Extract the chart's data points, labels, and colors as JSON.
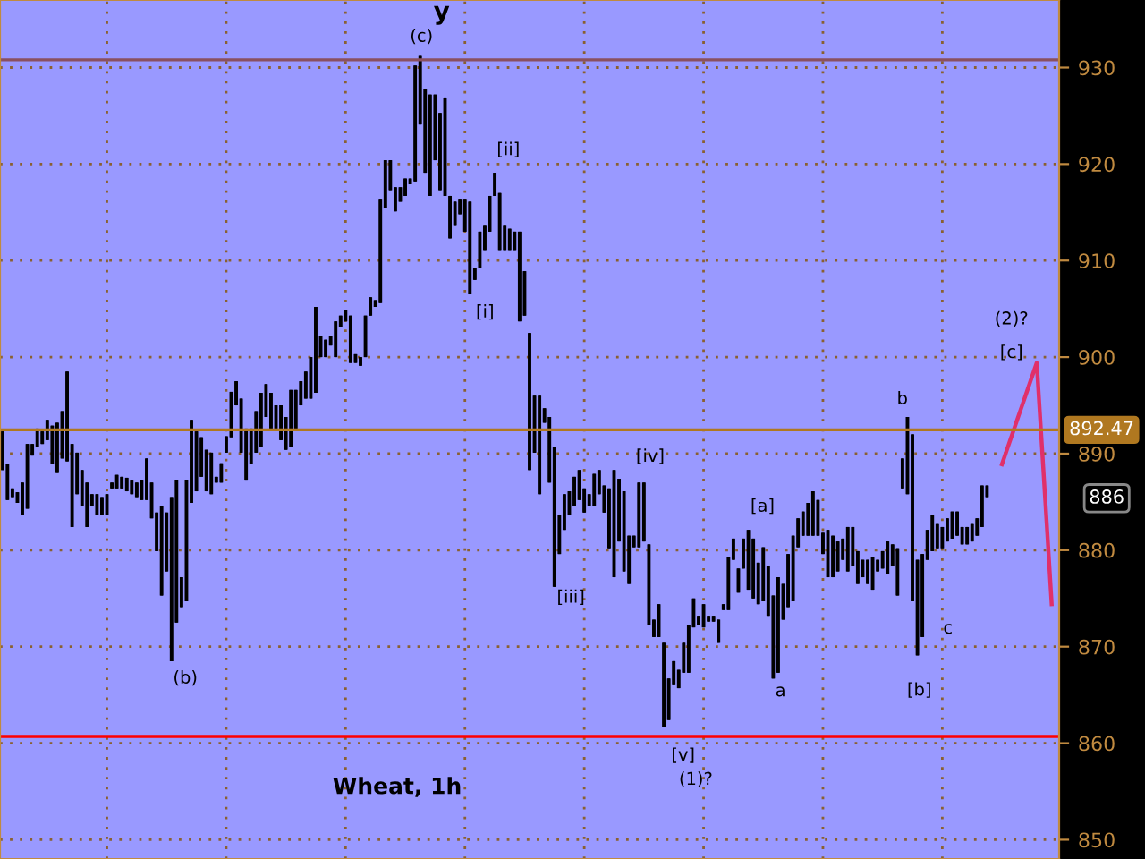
{
  "chart_data": {
    "type": "candlestick",
    "title": "Wheat, 1h",
    "categories": [
      null,
      null,
      null,
      null,
      null,
      null,
      null,
      null,
      null,
      null,
      null,
      null,
      null,
      null,
      null,
      null,
      null,
      null,
      null,
      null,
      null,
      null,
      null,
      null,
      null,
      null,
      null,
      null,
      null,
      null,
      null,
      null,
      null,
      null,
      null,
      null,
      null,
      null,
      null,
      null,
      null,
      null,
      null,
      null,
      null,
      null,
      null,
      null,
      null,
      null,
      null,
      null,
      null,
      null,
      null,
      null,
      null,
      null,
      null,
      null,
      null,
      null,
      null,
      null,
      null,
      null,
      null,
      null,
      null,
      null,
      null,
      null,
      null,
      null,
      null,
      null,
      null,
      null,
      null,
      null,
      null,
      null,
      null,
      null,
      null,
      null,
      null,
      null,
      null,
      null,
      null,
      null,
      null,
      null,
      null,
      null,
      null,
      null,
      null,
      null,
      null,
      null,
      null,
      null,
      null,
      null,
      null,
      null,
      null,
      null,
      null,
      null,
      null,
      null,
      null,
      null,
      null,
      null,
      null,
      null,
      null,
      null,
      null,
      null,
      null,
      null,
      null,
      null,
      null,
      null,
      null,
      null,
      null,
      null,
      null,
      null,
      null,
      null,
      null,
      null,
      null,
      null,
      null,
      null,
      null,
      null,
      null,
      null,
      null,
      null,
      null,
      null,
      null,
      null,
      null,
      null,
      null,
      null,
      null,
      null,
      null,
      null,
      null,
      null,
      null,
      null,
      null,
      null,
      null,
      null,
      null,
      null,
      null,
      null,
      null,
      null,
      null,
      null,
      null,
      null,
      null,
      null,
      null,
      null,
      null,
      null,
      null,
      null,
      null,
      null,
      null,
      null,
      null,
      null,
      null,
      null,
      null,
      null,
      null,
      null,
      null,
      null,
      null,
      null,
      null,
      null,
      null,
      null,
      null,
      null,
      null,
      null,
      null
    ],
    "ohlc": [
      [
        888.3,
        892.3,
        888.3,
        892.3
      ],
      [
        885.2,
        888.9,
        885.2,
        888.9
      ],
      [
        885.5,
        886.4,
        885.5,
        886.4
      ],
      [
        884.9,
        886.0,
        884.9,
        886.0
      ],
      [
        883.6,
        887.0,
        883.6,
        887.0
      ],
      [
        884.3,
        891.0,
        884.3,
        891.0
      ],
      [
        889.8,
        891.0,
        889.8,
        891.0
      ],
      [
        890.7,
        892.6,
        890.7,
        892.6
      ],
      [
        891.0,
        892.3,
        891.0,
        892.3
      ],
      [
        891.4,
        893.5,
        891.4,
        893.5
      ],
      [
        888.9,
        892.9,
        888.9,
        892.9
      ],
      [
        888.0,
        893.2,
        888.0,
        893.2
      ],
      [
        889.5,
        894.4,
        889.5,
        894.4
      ],
      [
        889.2,
        898.5,
        889.2,
        898.5
      ],
      [
        882.4,
        891.0,
        882.4,
        891.0
      ],
      [
        885.8,
        890.1,
        885.8,
        890.1
      ],
      [
        884.6,
        888.3,
        884.6,
        888.3
      ],
      [
        882.4,
        887.0,
        882.4,
        887.0
      ],
      [
        884.6,
        885.8,
        884.6,
        885.8
      ],
      [
        883.6,
        885.8,
        883.6,
        885.8
      ],
      [
        883.6,
        885.5,
        883.6,
        885.5
      ],
      [
        883.6,
        885.8,
        883.6,
        885.8
      ],
      [
        886.4,
        887.0,
        886.4,
        887.0
      ],
      [
        886.4,
        887.8,
        886.4,
        887.8
      ],
      [
        886.4,
        887.6,
        886.4,
        887.6
      ],
      [
        886.1,
        887.5,
        886.1,
        887.5
      ],
      [
        885.8,
        887.3,
        885.8,
        887.3
      ],
      [
        885.5,
        887.0,
        885.5,
        887.0
      ],
      [
        885.2,
        887.3,
        885.2,
        887.3
      ],
      [
        885.2,
        889.5,
        885.2,
        889.5
      ],
      [
        883.3,
        887.0,
        883.3,
        887.0
      ],
      [
        879.9,
        883.9,
        879.9,
        883.9
      ],
      [
        875.3,
        884.6,
        875.3,
        884.6
      ],
      [
        877.8,
        883.9,
        877.8,
        883.9
      ],
      [
        868.5,
        885.5,
        868.5,
        885.5
      ],
      [
        872.5,
        887.3,
        872.5,
        887.3
      ],
      [
        874.1,
        877.2,
        874.1,
        877.2
      ],
      [
        874.7,
        887.3,
        874.7,
        887.3
      ],
      [
        884.9,
        893.5,
        884.9,
        893.5
      ],
      [
        886.1,
        892.3,
        886.1,
        892.3
      ],
      [
        887.6,
        891.7,
        887.6,
        891.7
      ],
      [
        886.1,
        890.4,
        886.1,
        890.4
      ],
      [
        885.8,
        890.1,
        885.8,
        890.1
      ],
      [
        887.0,
        887.6,
        887.0,
        887.6
      ],
      [
        887.0,
        889.0,
        887.0,
        889.0
      ],
      [
        890.1,
        891.8,
        890.1,
        891.8
      ],
      [
        891.7,
        896.4,
        891.7,
        896.4
      ],
      [
        895.0,
        897.5,
        895.0,
        897.5
      ],
      [
        890.1,
        895.7,
        890.1,
        895.7
      ],
      [
        887.3,
        892.6,
        887.3,
        892.6
      ],
      [
        888.9,
        892.6,
        888.9,
        892.6
      ],
      [
        890.1,
        894.4,
        890.1,
        894.4
      ],
      [
        890.7,
        896.3,
        890.7,
        896.3
      ],
      [
        893.8,
        897.2,
        893.8,
        897.2
      ],
      [
        892.6,
        896.3,
        892.6,
        896.3
      ],
      [
        892.6,
        895.0,
        892.6,
        895.0
      ],
      [
        891.4,
        895.0,
        891.4,
        895.0
      ],
      [
        890.4,
        893.8,
        890.4,
        893.8
      ],
      [
        890.7,
        896.6,
        890.7,
        896.6
      ],
      [
        892.6,
        896.6,
        892.6,
        896.6
      ],
      [
        895.0,
        897.5,
        895.0,
        897.5
      ],
      [
        895.7,
        898.5,
        895.7,
        898.5
      ],
      [
        895.7,
        900.0,
        895.7,
        900.0
      ],
      [
        896.3,
        905.2,
        896.3,
        905.2
      ],
      [
        900.0,
        902.2,
        900.0,
        902.2
      ],
      [
        900.0,
        901.8,
        900.0,
        901.8
      ],
      [
        901.2,
        902.2,
        901.2,
        902.2
      ],
      [
        900.0,
        903.7,
        900.0,
        903.7
      ],
      [
        903.1,
        904.3,
        903.1,
        904.3
      ],
      [
        903.7,
        904.9,
        903.7,
        904.9
      ],
      [
        899.4,
        904.3,
        899.4,
        904.3
      ],
      [
        899.4,
        900.3,
        899.4,
        900.3
      ],
      [
        899.1,
        900.0,
        899.1,
        900.0
      ],
      [
        900.0,
        904.3,
        900.0,
        904.3
      ],
      [
        904.3,
        906.2,
        904.3,
        906.2
      ],
      [
        905.2,
        905.9,
        905.2,
        905.9
      ],
      [
        905.6,
        916.4,
        905.6,
        916.4
      ],
      [
        915.4,
        920.4,
        915.4,
        920.4
      ],
      [
        917.3,
        920.4,
        917.3,
        920.4
      ],
      [
        915.1,
        917.6,
        915.1,
        917.6
      ],
      [
        916.1,
        917.6,
        916.1,
        917.6
      ],
      [
        916.7,
        918.5,
        916.7,
        918.5
      ],
      [
        917.9,
        918.5,
        917.9,
        918.5
      ],
      [
        918.2,
        930.2,
        918.2,
        930.2
      ],
      [
        924.1,
        931.2,
        924.1,
        931.2
      ],
      [
        919.1,
        927.8,
        919.1,
        927.8
      ],
      [
        916.7,
        927.2,
        916.7,
        927.2
      ],
      [
        920.4,
        927.2,
        920.4,
        927.2
      ],
      [
        917.3,
        925.3,
        917.3,
        925.3
      ],
      [
        916.7,
        926.9,
        916.7,
        926.9
      ],
      [
        912.3,
        916.7,
        912.3,
        916.7
      ],
      [
        913.6,
        916.1,
        913.6,
        916.1
      ],
      [
        914.8,
        916.4,
        914.8,
        916.4
      ],
      [
        913.0,
        916.4,
        913.0,
        916.4
      ],
      [
        906.5,
        916.1,
        906.5,
        916.1
      ],
      [
        908.0,
        909.2,
        908.0,
        909.2
      ],
      [
        909.2,
        913.0,
        909.2,
        913.0
      ],
      [
        911.1,
        913.6,
        911.1,
        913.6
      ],
      [
        913.0,
        916.7,
        913.0,
        916.7
      ],
      [
        916.7,
        919.1,
        916.7,
        919.1
      ],
      [
        911.1,
        917.0,
        911.1,
        917.0
      ],
      [
        911.1,
        913.6,
        911.1,
        913.6
      ],
      [
        911.1,
        913.3,
        911.1,
        913.3
      ],
      [
        911.1,
        913.0,
        911.1,
        913.0
      ],
      [
        903.7,
        913.0,
        903.7,
        913.0
      ],
      [
        904.3,
        908.9,
        904.3,
        908.9
      ],
      [
        888.3,
        902.5,
        888.3,
        902.5
      ],
      [
        890.1,
        896.0,
        890.1,
        896.0
      ],
      [
        885.8,
        896.0,
        885.8,
        896.0
      ],
      [
        893.2,
        894.7,
        893.2,
        894.7
      ],
      [
        887.0,
        893.8,
        887.0,
        893.8
      ],
      [
        876.2,
        890.7,
        876.2,
        890.7
      ],
      [
        879.6,
        883.6,
        879.6,
        883.6
      ],
      [
        882.1,
        885.8,
        882.1,
        885.8
      ],
      [
        883.6,
        886.1,
        883.6,
        886.1
      ],
      [
        884.6,
        887.6,
        884.6,
        887.6
      ],
      [
        885.2,
        888.3,
        885.2,
        888.3
      ],
      [
        883.9,
        886.4,
        883.9,
        886.4
      ],
      [
        884.6,
        885.8,
        884.6,
        885.8
      ],
      [
        884.6,
        887.9,
        884.6,
        887.9
      ],
      [
        885.8,
        888.3,
        885.8,
        888.3
      ],
      [
        883.9,
        886.7,
        883.9,
        886.7
      ],
      [
        880.2,
        886.4,
        880.2,
        886.4
      ],
      [
        877.2,
        888.3,
        877.2,
        888.3
      ],
      [
        880.9,
        887.4,
        880.9,
        887.4
      ],
      [
        877.8,
        886.1,
        877.8,
        886.1
      ],
      [
        876.5,
        881.5,
        876.5,
        881.5
      ],
      [
        880.3,
        881.5,
        880.3,
        881.5
      ],
      [
        880.3,
        887.0,
        880.3,
        887.0
      ],
      [
        880.9,
        887.0,
        880.9,
        887.0
      ],
      [
        872.2,
        880.6,
        872.2,
        880.6
      ],
      [
        871.0,
        872.8,
        871.0,
        872.8
      ],
      [
        871.0,
        874.4,
        871.0,
        874.4
      ],
      [
        861.7,
        870.4,
        861.7,
        870.4
      ],
      [
        862.4,
        866.7,
        862.4,
        866.7
      ],
      [
        866.1,
        868.5,
        866.1,
        868.5
      ],
      [
        865.7,
        867.6,
        865.7,
        867.6
      ],
      [
        867.3,
        870.4,
        867.3,
        870.4
      ],
      [
        867.3,
        872.2,
        867.3,
        872.2
      ],
      [
        872.0,
        875.0,
        872.0,
        875.0
      ],
      [
        872.2,
        873.2,
        872.2,
        873.2
      ],
      [
        872.0,
        874.4,
        872.0,
        874.4
      ],
      [
        872.6,
        873.2,
        872.6,
        873.2
      ],
      [
        872.6,
        873.2,
        872.6,
        873.2
      ],
      [
        870.4,
        872.8,
        870.4,
        872.8
      ],
      [
        873.8,
        874.4,
        873.8,
        874.4
      ],
      [
        873.8,
        879.3,
        873.8,
        879.3
      ],
      [
        879.0,
        881.2,
        879.0,
        881.2
      ],
      [
        875.6,
        878.1,
        875.6,
        878.1
      ],
      [
        878.1,
        881.2,
        878.1,
        881.2
      ],
      [
        875.9,
        882.1,
        875.9,
        882.1
      ],
      [
        875.0,
        881.2,
        875.0,
        881.2
      ],
      [
        874.4,
        878.7,
        874.4,
        878.7
      ],
      [
        874.7,
        880.3,
        874.7,
        880.3
      ],
      [
        873.2,
        878.4,
        873.2,
        878.4
      ],
      [
        866.7,
        875.3,
        866.7,
        875.3
      ],
      [
        867.3,
        877.2,
        867.3,
        877.2
      ],
      [
        872.8,
        876.5,
        872.8,
        876.5
      ],
      [
        874.1,
        879.6,
        874.1,
        879.6
      ],
      [
        874.7,
        881.5,
        874.7,
        881.5
      ],
      [
        880.3,
        883.3,
        880.3,
        883.3
      ],
      [
        881.5,
        884.0,
        881.5,
        884.0
      ],
      [
        881.5,
        884.9,
        881.5,
        884.9
      ],
      [
        881.5,
        886.1,
        881.5,
        886.1
      ],
      [
        881.5,
        885.2,
        881.5,
        885.2
      ],
      [
        879.6,
        881.8,
        879.6,
        881.8
      ],
      [
        877.2,
        882.1,
        877.2,
        882.1
      ],
      [
        877.2,
        881.5,
        877.2,
        881.5
      ],
      [
        877.8,
        880.9,
        877.8,
        880.9
      ],
      [
        879.0,
        881.2,
        879.0,
        881.2
      ],
      [
        877.8,
        882.4,
        877.8,
        882.4
      ],
      [
        878.4,
        882.4,
        878.4,
        882.4
      ],
      [
        876.5,
        879.9,
        876.5,
        879.9
      ],
      [
        877.2,
        879.0,
        877.2,
        879.0
      ],
      [
        876.5,
        879.0,
        876.5,
        879.0
      ],
      [
        875.9,
        879.3,
        875.9,
        879.3
      ],
      [
        877.8,
        879.0,
        877.8,
        879.0
      ],
      [
        878.1,
        879.9,
        878.1,
        879.9
      ],
      [
        877.5,
        880.9,
        877.5,
        880.9
      ],
      [
        878.4,
        880.6,
        878.4,
        880.6
      ],
      [
        875.3,
        880.2,
        875.3,
        880.2
      ],
      [
        886.4,
        889.5,
        886.4,
        889.5
      ],
      [
        885.8,
        893.8,
        885.8,
        893.8
      ],
      [
        874.7,
        892.0,
        874.7,
        892.0
      ],
      [
        869.1,
        879.0,
        869.1,
        879.0
      ],
      [
        871.0,
        879.6,
        871.0,
        879.6
      ],
      [
        879.0,
        882.1,
        879.0,
        882.1
      ],
      [
        879.9,
        883.6,
        879.9,
        883.6
      ],
      [
        880.2,
        882.7,
        880.2,
        882.7
      ],
      [
        880.2,
        882.4,
        880.2,
        882.4
      ],
      [
        880.9,
        883.3,
        880.9,
        883.3
      ],
      [
        881.2,
        884.0,
        881.2,
        884.0
      ],
      [
        881.5,
        884.0,
        881.5,
        884.0
      ],
      [
        880.6,
        882.4,
        880.6,
        882.4
      ],
      [
        880.6,
        882.4,
        880.6,
        882.4
      ],
      [
        880.9,
        882.7,
        880.9,
        882.7
      ],
      [
        881.5,
        883.3,
        881.5,
        883.3
      ],
      [
        882.4,
        886.7,
        882.4,
        886.7
      ],
      [
        885.5,
        886.7,
        885.5,
        886.7
      ],
      null,
      null,
      null,
      null,
      null,
      null,
      null,
      null,
      null,
      null,
      null,
      null,
      null,
      null
    ],
    "series": [
      {
        "type": "line",
        "color": "#e0306a",
        "values": [
          null,
          null,
          null,
          null,
          null,
          null,
          null,
          null,
          null,
          null,
          null,
          null,
          null,
          null,
          null,
          null,
          null,
          null,
          null,
          null,
          null,
          null,
          null,
          null,
          null,
          null,
          null,
          null,
          null,
          null,
          null,
          null,
          null,
          null,
          null,
          null,
          null,
          null,
          null,
          null,
          null,
          null,
          null,
          null,
          null,
          null,
          null,
          null,
          null,
          null,
          null,
          null,
          null,
          null,
          null,
          null,
          null,
          null,
          null,
          null,
          null,
          null,
          null,
          null,
          null,
          null,
          null,
          null,
          null,
          null,
          null,
          null,
          null,
          null,
          null,
          null,
          null,
          null,
          null,
          null,
          null,
          null,
          null,
          null,
          null,
          null,
          null,
          null,
          null,
          null,
          null,
          null,
          null,
          null,
          null,
          null,
          null,
          null,
          null,
          null,
          null,
          null,
          null,
          null,
          null,
          null,
          null,
          null,
          null,
          null,
          null,
          null,
          null,
          null,
          null,
          null,
          null,
          null,
          null,
          null,
          null,
          null,
          null,
          null,
          null,
          null,
          null,
          null,
          null,
          null,
          null,
          null,
          null,
          null,
          null,
          null,
          null,
          null,
          null,
          null,
          null,
          null,
          null,
          null,
          null,
          null,
          null,
          null,
          null,
          null,
          null,
          null,
          null,
          null,
          null,
          null,
          null,
          null,
          null,
          null,
          null,
          null,
          null,
          null,
          null,
          null,
          null,
          null,
          null,
          null,
          null,
          null,
          null,
          null,
          null,
          null,
          null,
          null,
          null,
          null,
          null,
          null,
          null,
          null,
          null,
          null,
          null,
          null,
          null,
          null,
          null,
          null,
          null,
          null,
          null,
          null,
          null,
          null,
          null,
          null,
          null,
          888.9,
          890.4,
          891.9,
          893.4,
          894.9,
          896.4,
          897.9,
          899.4,
          891.1,
          882.8,
          874.4,
          null
        ]
      }
    ],
    "ylim": [
      848,
      937
    ],
    "yticks": [
      850,
      860,
      870,
      880,
      890,
      900,
      910,
      920,
      930
    ],
    "tick_labels": "y",
    "grid": true,
    "legend": false,
    "ref_lines": [
      {
        "axis": "y",
        "value": 892.47,
        "label": "892.47",
        "color": "#b07820"
      },
      {
        "axis": "y",
        "value": 860.7,
        "color": "#ff0000"
      },
      {
        "axis": "y",
        "value": 930.8,
        "color": "#8a5060"
      }
    ],
    "annotations": [
      "y",
      "(c)",
      "(b)",
      "[ii]",
      "[i]",
      "[iii]",
      "[iv]",
      "[v]",
      "(1)?",
      "[a]",
      "a",
      "b",
      "c",
      "[b]",
      "(2)?",
      "[c]",
      "886"
    ]
  }
}
